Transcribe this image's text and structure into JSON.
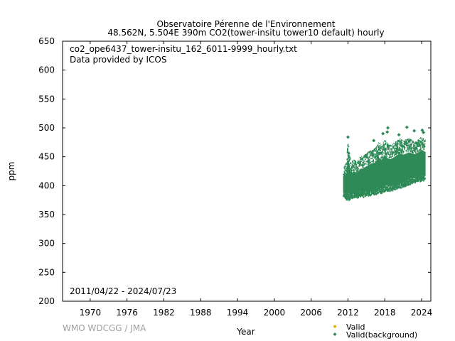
{
  "header": {
    "title_line1": "Observatoire Pérenne de l'Environnement",
    "title_line2": "48.562N, 5.504E 390m     CO2(tower-insitu tower10 default) hourly"
  },
  "annotations": {
    "filename": "co2_ope6437_tower-insitu_162_6011-9999_hourly.txt",
    "provider": "Data provided by ICOS",
    "period": "2011/04/22 - 2024/07/23"
  },
  "credit": "WMO WDCGG / JMA",
  "chart_data": {
    "type": "scatter",
    "xlabel": "Year",
    "ylabel": "ppm",
    "xlim": [
      1965.5,
      2025.5
    ],
    "ylim": [
      200,
      650
    ],
    "x_ticks": [
      1970,
      1976,
      1982,
      1988,
      1994,
      2000,
      2006,
      2012,
      2018,
      2024
    ],
    "y_ticks": [
      200,
      250,
      300,
      350,
      400,
      450,
      500,
      550,
      600,
      650
    ],
    "grid": false,
    "legend_position": "bottom-right",
    "series": [
      {
        "name": "Valid",
        "color": "#e0b000",
        "marker": "diamond",
        "points": []
      },
      {
        "name": "Valid(background)",
        "color": "#2e8b57",
        "marker": "diamond",
        "envelope": [
          {
            "x": 2011.3,
            "min": 380,
            "max": 432
          },
          {
            "x": 2011.8,
            "min": 374,
            "max": 440
          },
          {
            "x": 2012.0,
            "min": 372,
            "max": 480
          },
          {
            "x": 2012.5,
            "min": 375,
            "max": 440
          },
          {
            "x": 2013.0,
            "min": 378,
            "max": 445
          },
          {
            "x": 2013.5,
            "min": 376,
            "max": 440
          },
          {
            "x": 2014.0,
            "min": 380,
            "max": 450
          },
          {
            "x": 2014.5,
            "min": 378,
            "max": 452
          },
          {
            "x": 2015.0,
            "min": 382,
            "max": 455
          },
          {
            "x": 2015.5,
            "min": 380,
            "max": 460
          },
          {
            "x": 2016.0,
            "min": 384,
            "max": 462
          },
          {
            "x": 2016.5,
            "min": 382,
            "max": 465
          },
          {
            "x": 2017.0,
            "min": 386,
            "max": 475
          },
          {
            "x": 2017.5,
            "min": 384,
            "max": 470
          },
          {
            "x": 2018.0,
            "min": 388,
            "max": 480
          },
          {
            "x": 2018.5,
            "min": 387,
            "max": 472
          },
          {
            "x": 2019.0,
            "min": 390,
            "max": 470
          },
          {
            "x": 2019.5,
            "min": 390,
            "max": 474
          },
          {
            "x": 2020.0,
            "min": 393,
            "max": 478
          },
          {
            "x": 2020.5,
            "min": 394,
            "max": 482
          },
          {
            "x": 2021.0,
            "min": 396,
            "max": 478
          },
          {
            "x": 2021.5,
            "min": 398,
            "max": 480
          },
          {
            "x": 2022.0,
            "min": 400,
            "max": 482
          },
          {
            "x": 2022.5,
            "min": 402,
            "max": 478
          },
          {
            "x": 2023.0,
            "min": 404,
            "max": 476
          },
          {
            "x": 2023.5,
            "min": 405,
            "max": 480
          },
          {
            "x": 2024.0,
            "min": 406,
            "max": 485
          },
          {
            "x": 2024.55,
            "min": 408,
            "max": 480
          }
        ],
        "outliers": [
          {
            "x": 2012.0,
            "y": 484
          },
          {
            "x": 2016.2,
            "y": 478
          },
          {
            "x": 2017.7,
            "y": 490
          },
          {
            "x": 2018.4,
            "y": 493
          },
          {
            "x": 2018.5,
            "y": 500
          },
          {
            "x": 2020.3,
            "y": 488
          },
          {
            "x": 2021.6,
            "y": 501
          },
          {
            "x": 2022.8,
            "y": 495
          },
          {
            "x": 2024.1,
            "y": 496
          },
          {
            "x": 2024.3,
            "y": 492
          }
        ]
      }
    ]
  }
}
